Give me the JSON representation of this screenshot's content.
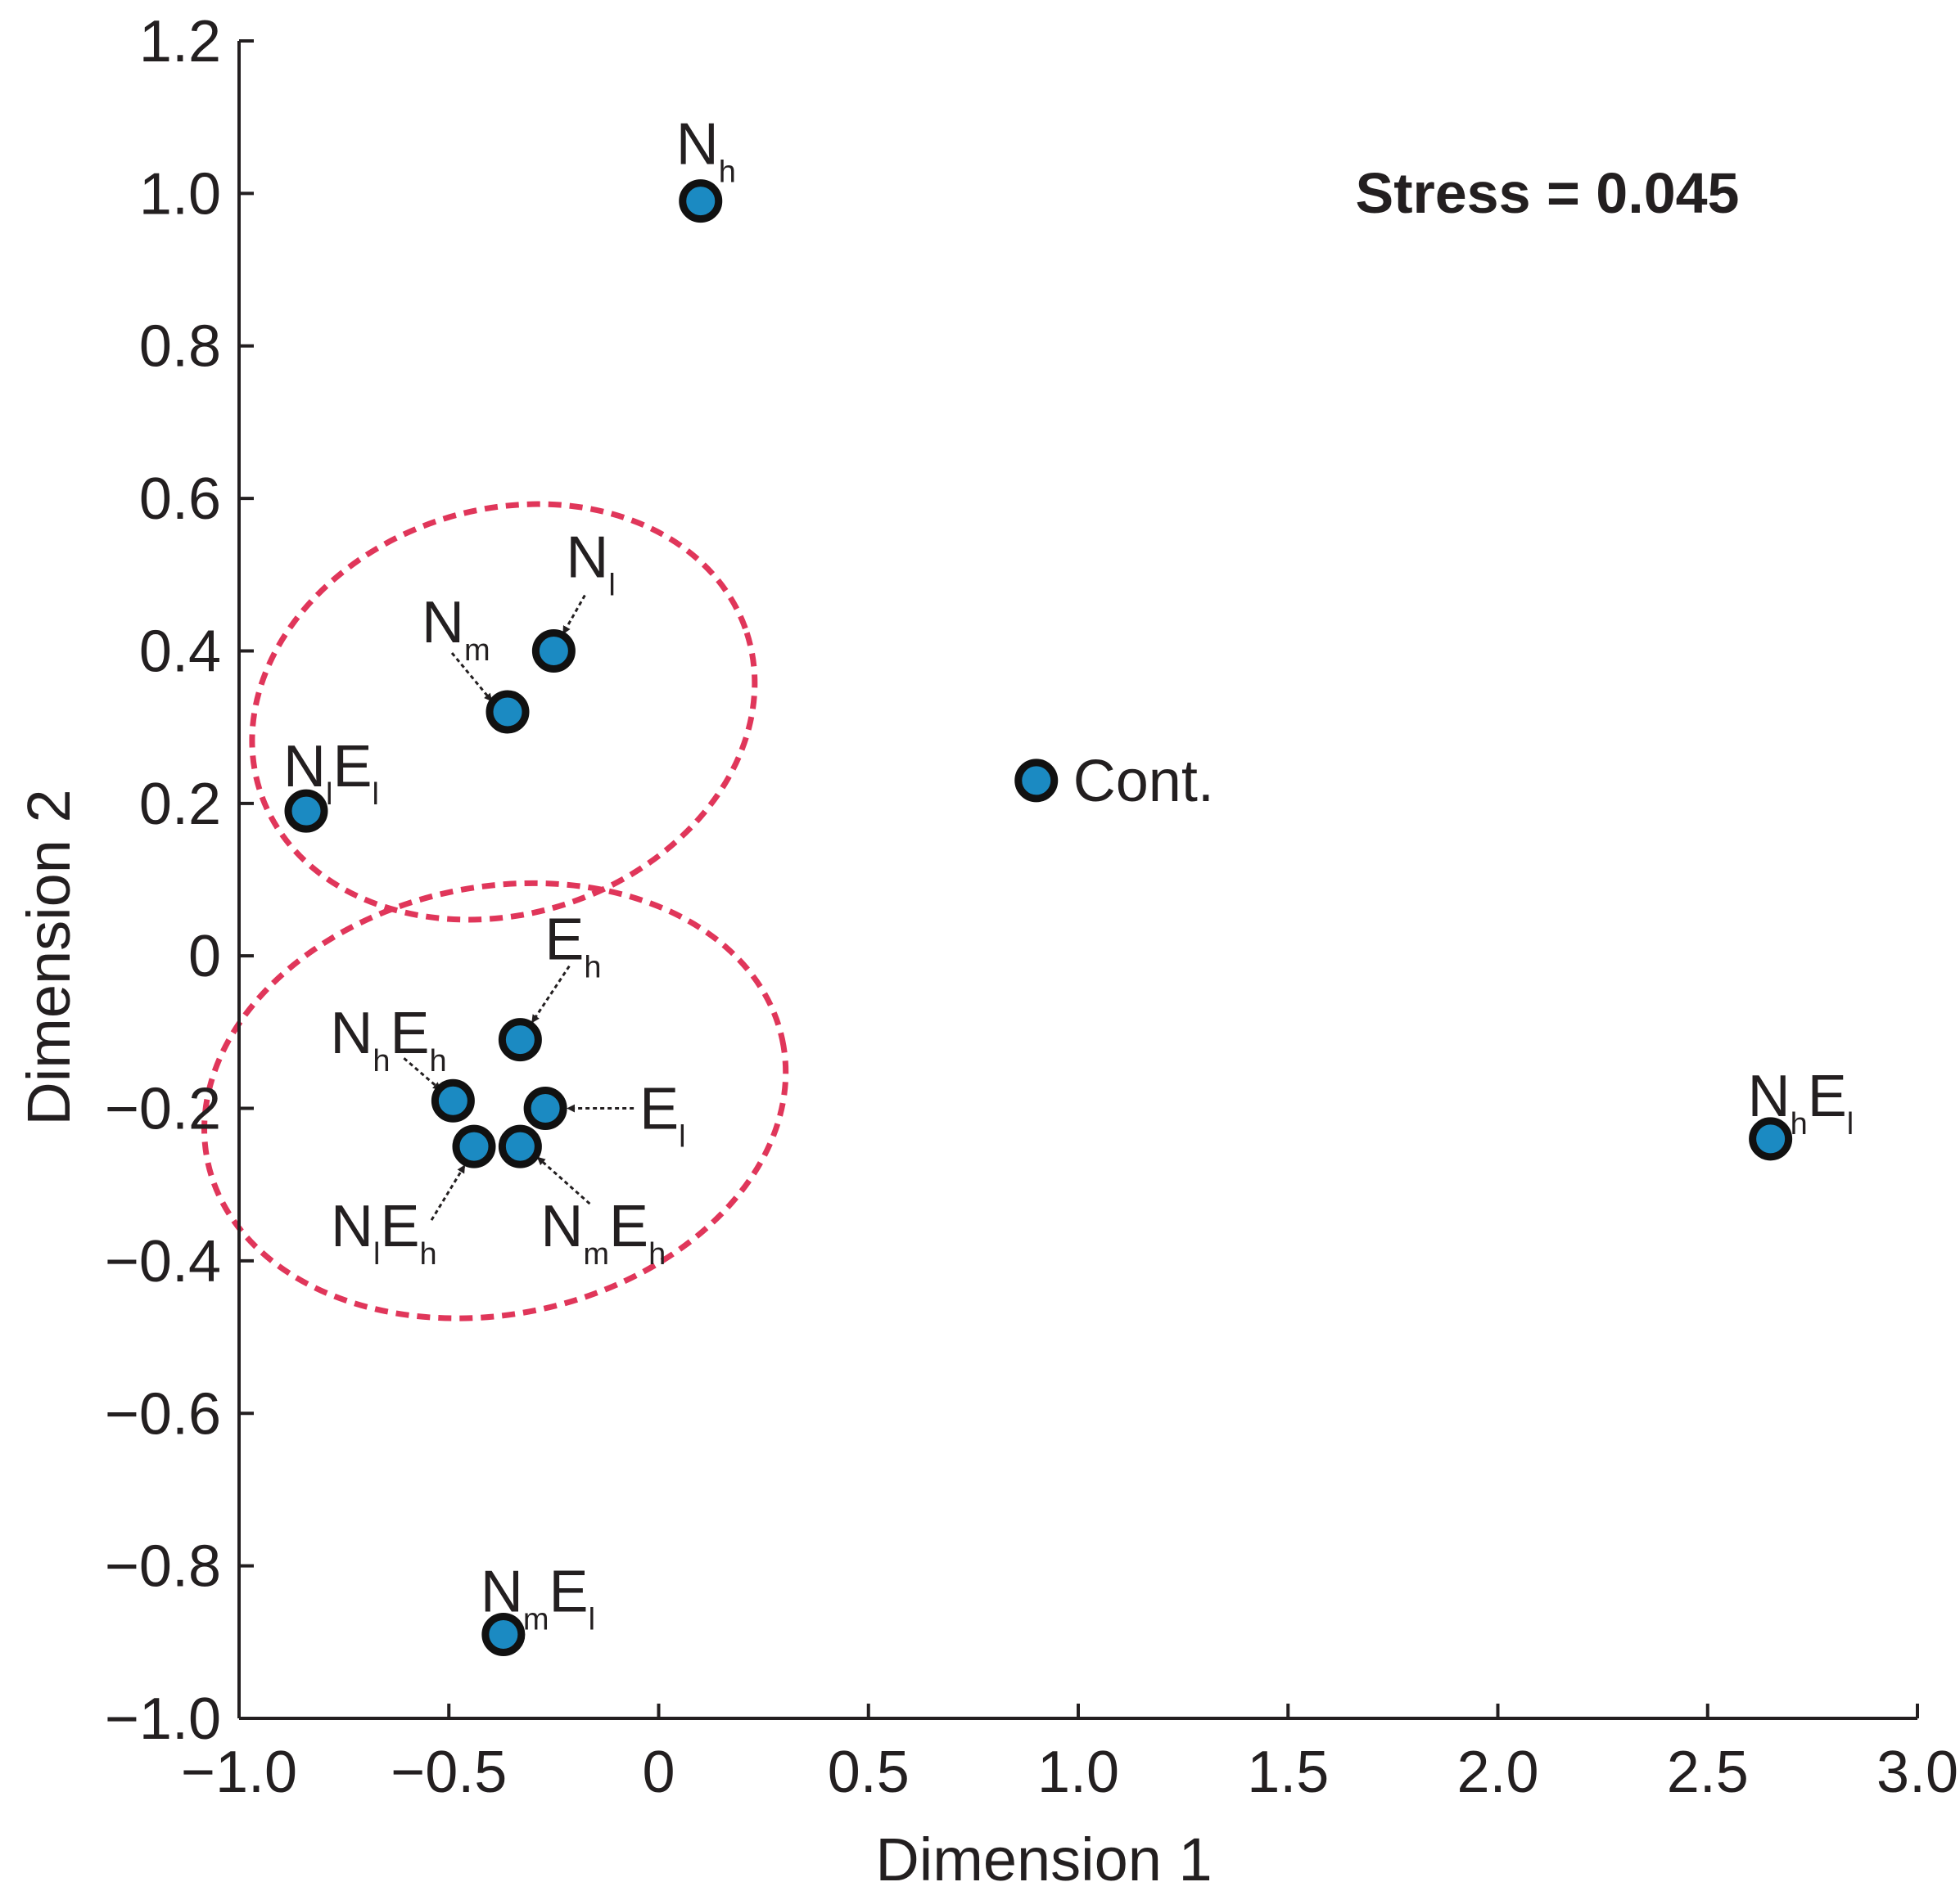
{
  "chart_data": {
    "type": "scatter",
    "title": "",
    "xlabel": "Dimension 1",
    "ylabel": "Dimension 2",
    "xlim": [
      -1.0,
      3.0
    ],
    "ylim": [
      -1.0,
      1.2
    ],
    "grid": false,
    "xticks": [
      -1.0,
      -0.5,
      0,
      0.5,
      1.0,
      1.5,
      2.0,
      2.5,
      3.0
    ],
    "xtick_labels": [
      "−1.0",
      "−0.5",
      "0",
      "0.5",
      "1.0",
      "1.5",
      "2.0",
      "2.5",
      "3.0"
    ],
    "yticks": [
      1.2,
      1.0,
      0.8,
      0.6,
      0.4,
      0.2,
      0,
      -0.2,
      -0.4,
      -0.6,
      -0.8,
      -1.0
    ],
    "ytick_labels": [
      "1.2",
      "1.0",
      "0.8",
      "0.6",
      "0.4",
      "0.2",
      "0",
      "−0.2",
      "−0.4",
      "−0.6",
      "−0.8",
      "−1.0"
    ],
    "annotation": "Stress = 0.045",
    "marker_fill": "#1b8ac2",
    "marker_edge": "#111111",
    "cluster_color": "#e0365a",
    "axis_color": "#231f20",
    "points": [
      {
        "id": "Nh",
        "x": 0.1,
        "y": 0.99,
        "label": [
          [
            "N",
            ""
          ],
          [
            "",
            "h"
          ]
        ]
      },
      {
        "id": "Nl",
        "x": -0.25,
        "y": 0.4,
        "label": [
          [
            "N",
            ""
          ],
          [
            "",
            "l"
          ]
        ]
      },
      {
        "id": "Nm",
        "x": -0.36,
        "y": 0.32,
        "label": [
          [
            "N",
            ""
          ],
          [
            "",
            "m"
          ]
        ]
      },
      {
        "id": "NlEl",
        "x": -0.84,
        "y": 0.19,
        "label": [
          [
            "N",
            ""
          ],
          [
            "",
            "l"
          ],
          [
            "E",
            ""
          ],
          [
            "",
            "l"
          ]
        ]
      },
      {
        "id": "Cont",
        "x": 0.9,
        "y": 0.23,
        "label": [
          [
            "Cont.",
            ""
          ]
        ]
      },
      {
        "id": "Eh",
        "x": -0.33,
        "y": -0.11,
        "label": [
          [
            "E",
            ""
          ],
          [
            "",
            "h"
          ]
        ]
      },
      {
        "id": "NhEh",
        "x": -0.49,
        "y": -0.19,
        "label": [
          [
            "N",
            ""
          ],
          [
            "",
            "h"
          ],
          [
            "E",
            ""
          ],
          [
            "",
            "h"
          ]
        ]
      },
      {
        "id": "El",
        "x": -0.27,
        "y": -0.2,
        "label": [
          [
            "E",
            ""
          ],
          [
            "",
            "l"
          ]
        ]
      },
      {
        "id": "NlEh",
        "x": -0.44,
        "y": -0.25,
        "label": [
          [
            "N",
            ""
          ],
          [
            "",
            "l"
          ],
          [
            "E",
            ""
          ],
          [
            "",
            "h"
          ]
        ]
      },
      {
        "id": "NmEh",
        "x": -0.33,
        "y": -0.25,
        "label": [
          [
            "N",
            ""
          ],
          [
            "",
            "m"
          ],
          [
            "E",
            ""
          ],
          [
            "",
            "h"
          ]
        ]
      },
      {
        "id": "NhEl",
        "x": 2.65,
        "y": -0.24,
        "label": [
          [
            "N",
            ""
          ],
          [
            "",
            "h"
          ],
          [
            "E",
            ""
          ],
          [
            "",
            "l"
          ]
        ]
      },
      {
        "id": "NmEl",
        "x": -0.37,
        "y": -0.89,
        "label": [
          [
            "N",
            ""
          ],
          [
            "",
            "m"
          ],
          [
            "E",
            ""
          ],
          [
            "",
            "l"
          ]
        ]
      }
    ],
    "clusters": [
      {
        "name": "upper-cluster",
        "cx": -0.37,
        "cy": 0.32,
        "rx": 0.61,
        "ry": 0.265,
        "rotate": -18
      },
      {
        "name": "lower-cluster",
        "cx": -0.39,
        "cy": -0.19,
        "rx": 0.7,
        "ry": 0.28,
        "rotate": -12
      }
    ]
  }
}
